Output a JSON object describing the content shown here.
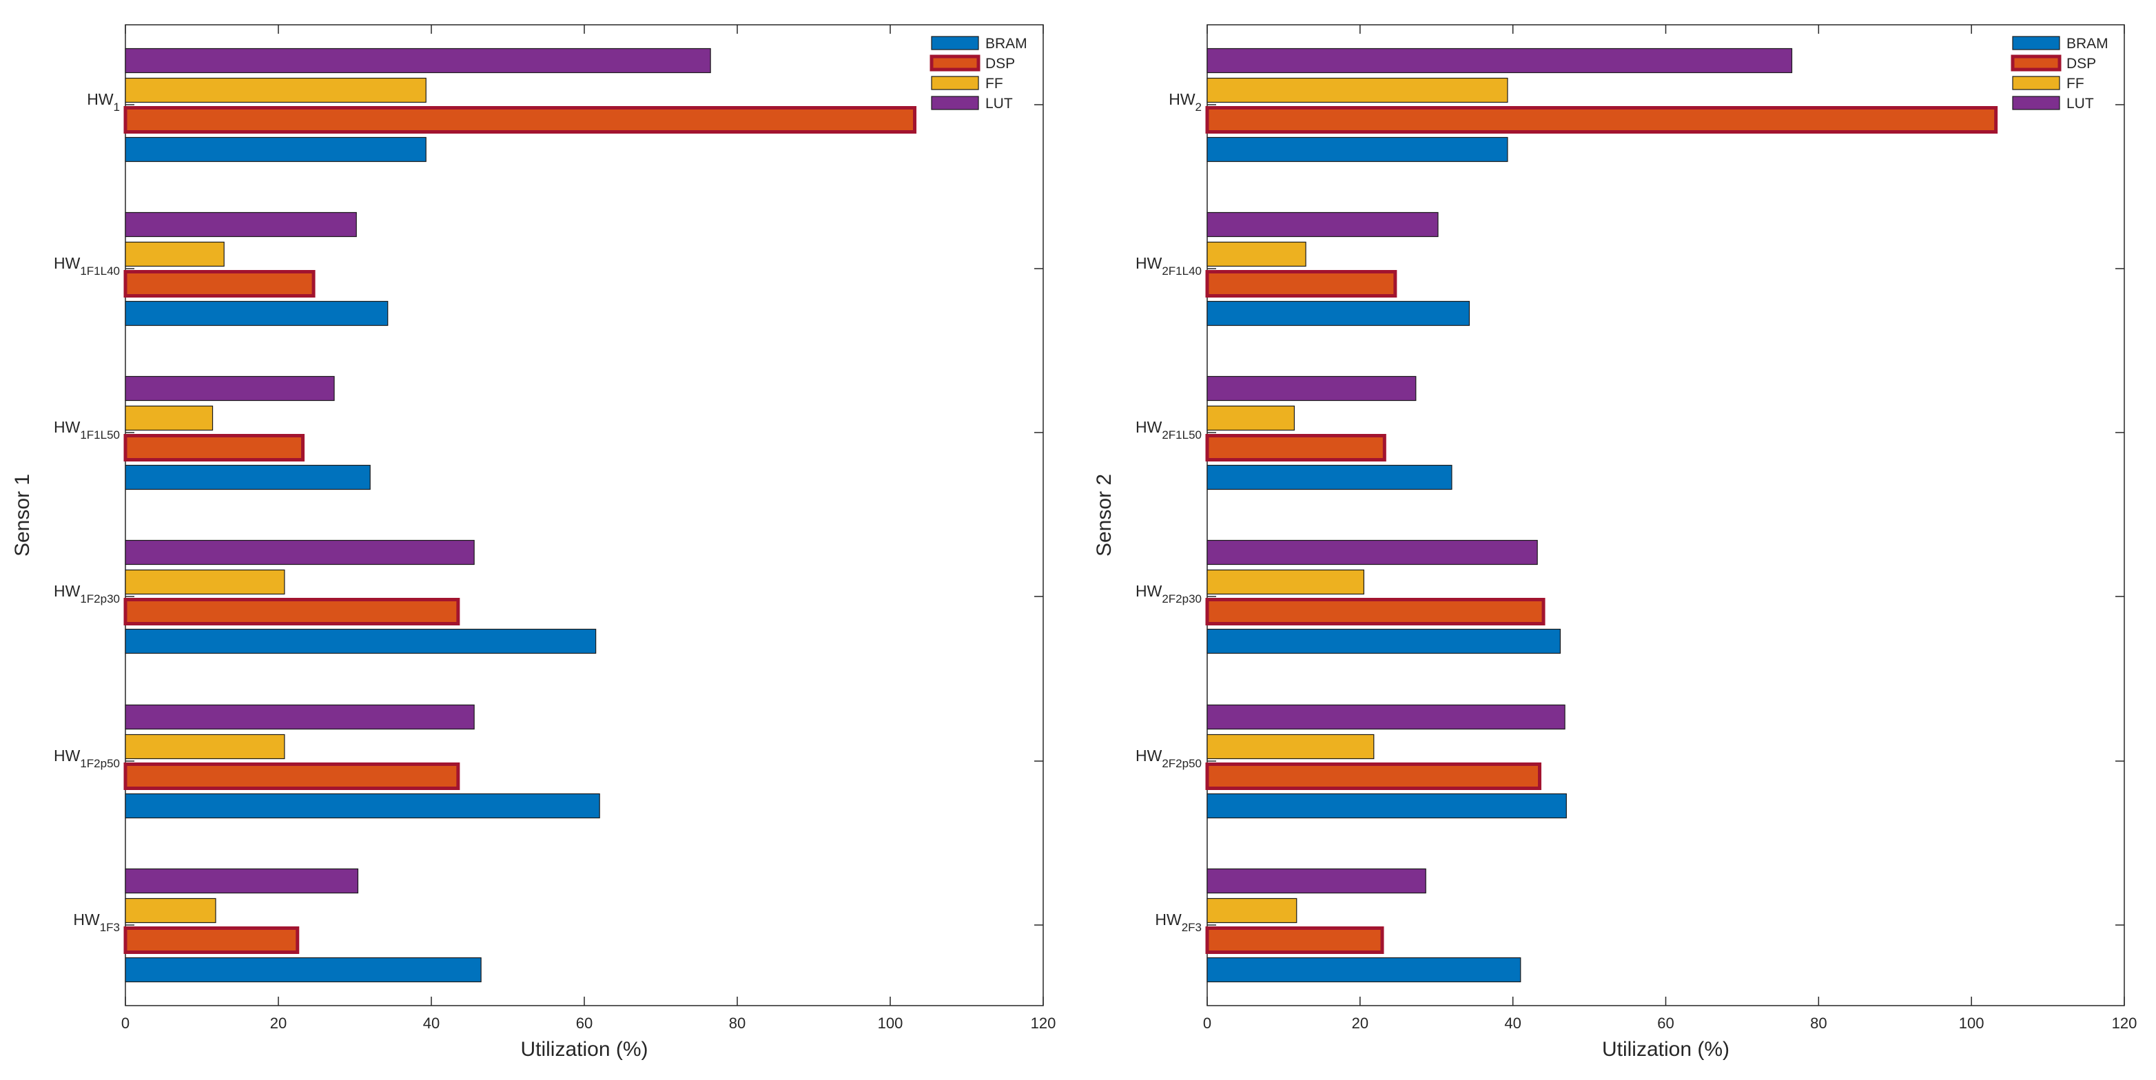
{
  "colors": {
    "BRAM": "#0072BD",
    "DSP": "#D95319",
    "FF": "#EDB120",
    "LUT": "#7E2F8E",
    "dsp_edge": "#A2142F",
    "edge": "#1a1a1a",
    "axis": "#262626"
  },
  "chart_data": [
    {
      "type": "bar",
      "orientation": "horizontal",
      "xlabel": "Utilization (%)",
      "ylabel": "Sensor 1",
      "xlim": [
        0,
        120
      ],
      "xticks": [
        0,
        20,
        40,
        60,
        80,
        100,
        120
      ],
      "legend": "top-right",
      "legend_entries": [
        "BRAM",
        "DSP",
        "FF",
        "LUT"
      ],
      "categories": [
        {
          "base": "HW",
          "sub": "1"
        },
        {
          "base": "HW",
          "sub": "1F1L40"
        },
        {
          "base": "HW",
          "sub": "1F1L50"
        },
        {
          "base": "HW",
          "sub": "1F2p30"
        },
        {
          "base": "HW",
          "sub": "1F2p50"
        },
        {
          "base": "HW",
          "sub": "1F3"
        }
      ],
      "series": [
        {
          "name": "BRAM",
          "values": [
            39.3,
            34.3,
            32.0,
            61.5,
            62.0,
            46.5
          ]
        },
        {
          "name": "DSP",
          "values": [
            103.2,
            24.6,
            23.2,
            43.5,
            43.5,
            22.5
          ]
        },
        {
          "name": "FF",
          "values": [
            39.3,
            12.9,
            11.4,
            20.8,
            20.8,
            11.8
          ]
        },
        {
          "name": "LUT",
          "values": [
            76.5,
            30.2,
            27.3,
            45.6,
            45.6,
            30.4
          ]
        }
      ]
    },
    {
      "type": "bar",
      "orientation": "horizontal",
      "xlabel": "Utilization (%)",
      "ylabel": "Sensor 2",
      "xlim": [
        0,
        120
      ],
      "xticks": [
        0,
        20,
        40,
        60,
        80,
        100,
        120
      ],
      "legend": "top-right",
      "legend_entries": [
        "BRAM",
        "DSP",
        "FF",
        "LUT"
      ],
      "categories": [
        {
          "base": "HW",
          "sub": "2"
        },
        {
          "base": "HW",
          "sub": "2F1L40"
        },
        {
          "base": "HW",
          "sub": "2F1L50"
        },
        {
          "base": "HW",
          "sub": "2F2p30"
        },
        {
          "base": "HW",
          "sub": "2F2p50"
        },
        {
          "base": "HW",
          "sub": "2F3"
        }
      ],
      "series": [
        {
          "name": "BRAM",
          "values": [
            39.3,
            34.3,
            32.0,
            46.2,
            47.0,
            41.0
          ]
        },
        {
          "name": "DSP",
          "values": [
            103.2,
            24.6,
            23.2,
            44.0,
            43.5,
            22.9
          ]
        },
        {
          "name": "FF",
          "values": [
            39.3,
            12.9,
            11.4,
            20.5,
            21.8,
            11.7
          ]
        },
        {
          "name": "LUT",
          "values": [
            76.5,
            30.2,
            27.3,
            43.2,
            46.8,
            28.6
          ]
        }
      ]
    }
  ]
}
